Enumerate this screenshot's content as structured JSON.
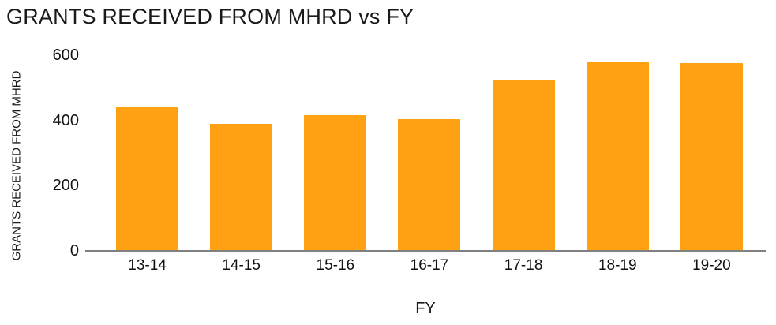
{
  "chart_data": {
    "type": "bar",
    "title": "GRANTS RECEIVED FROM MHRD vs FY",
    "xlabel": "FY",
    "ylabel": "GRANTS RECEIVED FROM MHRD",
    "categories": [
      "13-14",
      "14-15",
      "15-16",
      "16-17",
      "17-18",
      "18-19",
      "19-20"
    ],
    "values": [
      440,
      390,
      415,
      405,
      525,
      580,
      575
    ],
    "ylim": [
      0,
      600
    ],
    "yticks": [
      0,
      200,
      400,
      600
    ],
    "grid": false,
    "legend": "none",
    "colors": {
      "bar": "#FFA113",
      "axis_line": "#808080",
      "text": "#111111",
      "title": "#1A1A1A",
      "background": "#FFFFFF"
    }
  }
}
